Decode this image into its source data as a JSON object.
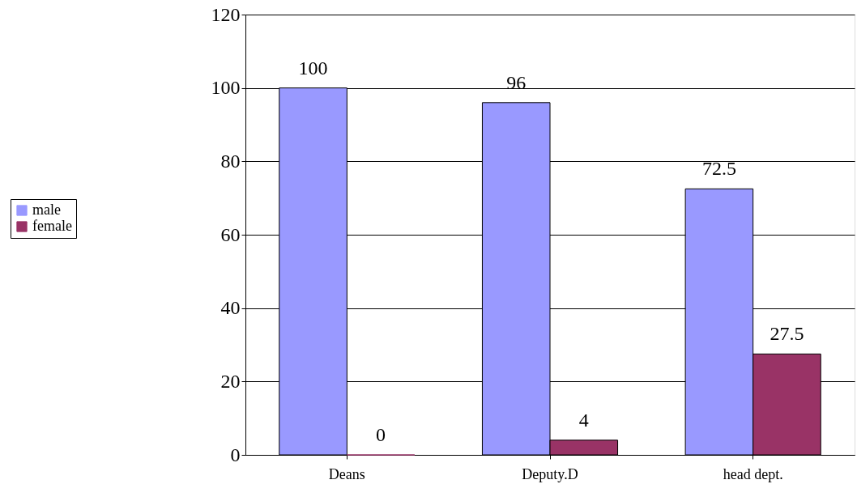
{
  "chart_data": {
    "type": "bar",
    "categories": [
      "Deans",
      "Deputy.D",
      "head dept."
    ],
    "series": [
      {
        "name": "male",
        "color": "#9999ff",
        "values": [
          100,
          96,
          72.5
        ]
      },
      {
        "name": "female",
        "color": "#993366",
        "values": [
          0,
          4,
          27.5
        ]
      }
    ],
    "ylim": [
      0,
      120
    ],
    "yticks": [
      0,
      20,
      40,
      60,
      80,
      100,
      120
    ],
    "grid": "y",
    "legend": "left",
    "data_labels": true
  }
}
